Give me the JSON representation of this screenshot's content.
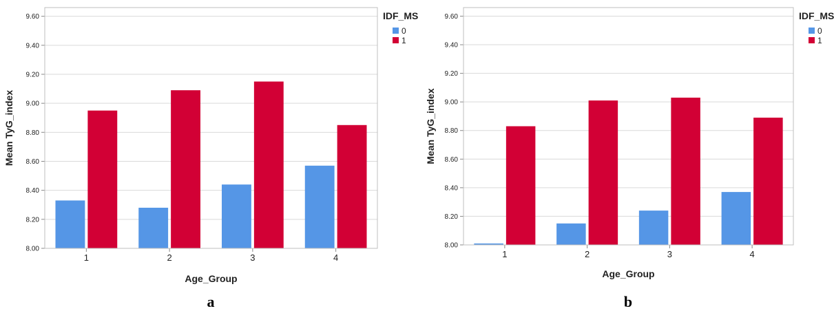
{
  "chart_data": [
    {
      "type": "bar",
      "panel_label": "a",
      "categories": [
        "1",
        "2",
        "3",
        "4"
      ],
      "series": [
        {
          "name": "0",
          "color": "#5596e6",
          "values": [
            8.33,
            8.28,
            8.44,
            8.57
          ]
        },
        {
          "name": "1",
          "color": "#d20035",
          "values": [
            8.95,
            9.09,
            9.15,
            8.85
          ]
        }
      ],
      "xlabel": "Age_Group",
      "ylabel": "Mean TyG_index",
      "ylim": [
        8.0,
        9.66
      ],
      "yticks": [
        "8.00",
        "8.20",
        "8.40",
        "8.60",
        "8.80",
        "9.00",
        "9.20",
        "9.40",
        "9.60"
      ],
      "legend_title": "IDF_MS",
      "legend_position": "top-right",
      "grid": true
    },
    {
      "type": "bar",
      "panel_label": "b",
      "categories": [
        "1",
        "2",
        "3",
        "4"
      ],
      "series": [
        {
          "name": "0",
          "color": "#5596e6",
          "values": [
            8.01,
            8.15,
            8.24,
            8.37
          ]
        },
        {
          "name": "1",
          "color": "#d20035",
          "values": [
            8.83,
            9.01,
            9.03,
            8.89
          ]
        }
      ],
      "xlabel": "Age_Group",
      "ylabel": "Mean TyG_index",
      "ylim": [
        8.0,
        9.66
      ],
      "yticks": [
        "8.00",
        "8.20",
        "8.40",
        "8.60",
        "8.80",
        "9.00",
        "9.20",
        "9.40",
        "9.60"
      ],
      "legend_title": "IDF_MS",
      "legend_position": "top-right",
      "grid": true
    }
  ]
}
